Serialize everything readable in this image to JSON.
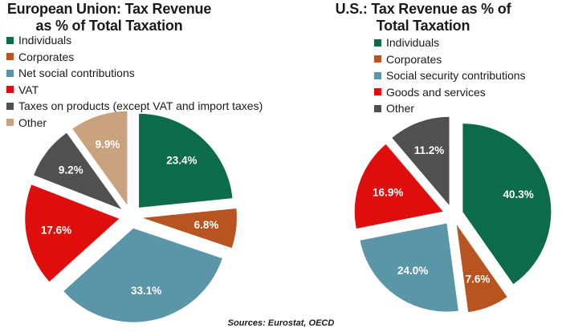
{
  "chart_data": [
    {
      "type": "pie",
      "title": "European Union: Tax Revenue as % of Total Taxation",
      "labels": [
        "Individuals",
        "Corporates",
        "Net social contributions",
        "VAT",
        "Taxes on products (except VAT and import taxes)",
        "Other"
      ],
      "values": [
        23.4,
        6.8,
        33.1,
        17.6,
        9.2,
        9.9
      ],
      "value_labels": [
        "23.4%",
        "6.8%",
        "33.1%",
        "17.6%",
        "9.2%",
        "9.9%"
      ],
      "colors": [
        "#0b6b4a",
        "#b8541f",
        "#5a95a8",
        "#e00d0d",
        "#505050",
        "#c9a27e"
      ],
      "exploded": true,
      "legend": "top-left"
    },
    {
      "type": "pie",
      "title": "U.S.: Tax Revenue as % of Total Taxation",
      "labels": [
        "Individuals",
        "Corporates",
        "Social security contributions",
        "Goods and services",
        "Other"
      ],
      "values": [
        40.3,
        7.6,
        24.0,
        16.9,
        11.2
      ],
      "value_labels": [
        "40.3%",
        "7.6%",
        "24.0%",
        "16.9%",
        "11.2%"
      ],
      "colors": [
        "#0b6b4a",
        "#b8541f",
        "#5a95a8",
        "#e00d0d",
        "#505050"
      ],
      "exploded": true,
      "legend": "top"
    }
  ],
  "source": "Sources: Eurostat, OECD"
}
